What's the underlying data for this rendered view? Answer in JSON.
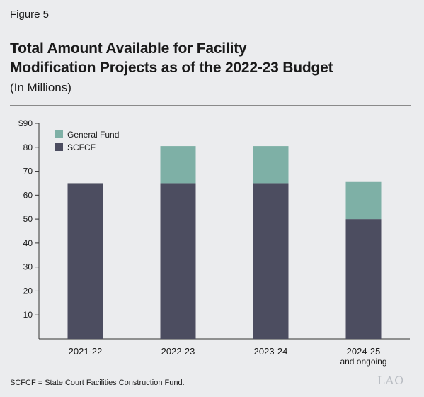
{
  "figure_label": "Figure 5",
  "title_line1": "Total Amount Available for Facility",
  "title_line2": "Modification Projects as of the 2022-23 Budget",
  "subtitle": "(In Millions)",
  "footnote": "SCFCF = State Court Facilities Construction Fund.",
  "logo_text": "LAO",
  "colors": {
    "background": "#ebecee",
    "scfcf": "#4c4d60",
    "general_fund": "#7eb0a6",
    "axis": "#333333"
  },
  "chart_data": {
    "type": "bar",
    "stacked": true,
    "title": "Total Amount Available for Facility Modification Projects as of the 2022-23 Budget",
    "subtitle": "(In Millions)",
    "categories": [
      [
        "2021-22"
      ],
      [
        "2022-23"
      ],
      [
        "2023-24"
      ],
      [
        "2024-25",
        "and ongoing"
      ]
    ],
    "series": [
      {
        "name": "SCFCF",
        "color": "#4c4d60",
        "values": [
          65,
          65,
          65,
          50
        ]
      },
      {
        "name": "General Fund",
        "color": "#7eb0a6",
        "values": [
          0,
          15.5,
          15.5,
          15.5
        ]
      }
    ],
    "ylim": [
      0,
      90
    ],
    "yticks": [
      10,
      20,
      30,
      40,
      50,
      60,
      70,
      80,
      90
    ],
    "ytick_labels": [
      "10",
      "20",
      "30",
      "40",
      "50",
      "60",
      "70",
      "80",
      "$90"
    ],
    "legend": {
      "position": "top-left",
      "order": [
        "General Fund",
        "SCFCF"
      ]
    },
    "grid": false
  }
}
